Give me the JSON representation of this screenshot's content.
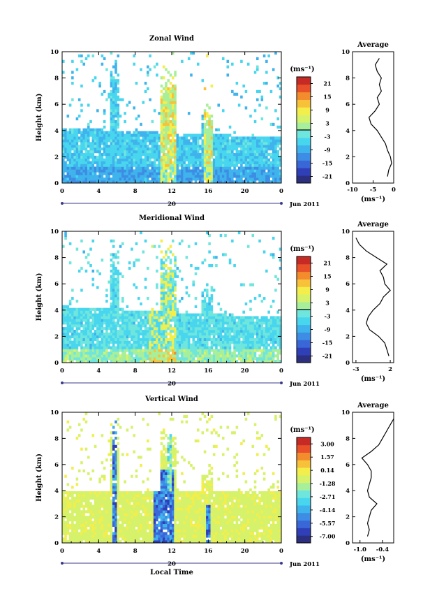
{
  "figure": {
    "xlabel": "Local Time",
    "date_label": "Jun 2011",
    "day_label": "20",
    "unit_label": "(ms⁻¹)"
  },
  "chart_data": [
    {
      "type": "heatmap",
      "title": "Zonal Wind",
      "ylabel": "Height (km)",
      "xlim": [
        0,
        24
      ],
      "ylim": [
        0,
        10
      ],
      "x_ticks": [
        "0",
        "4",
        "8",
        "12",
        "16",
        "20",
        "0"
      ],
      "y_ticks": [
        "0",
        "2",
        "4",
        "6",
        "8",
        "10"
      ],
      "colorbar_unit": "(ms⁻¹)",
      "colorbar_ticks": [
        "21",
        "15",
        "9",
        "3",
        "-3",
        "-9",
        "-15",
        "-21"
      ],
      "colorbar_range": [
        -24,
        24
      ],
      "average_profile": {
        "title": "Average",
        "xlabel": "(ms⁻¹)",
        "x_ticks": [
          "-10",
          "-5",
          "0"
        ],
        "xlim": [
          -10,
          0
        ],
        "heights": [
          0.5,
          1,
          1.5,
          2,
          2.5,
          3,
          3.5,
          4,
          4.5,
          5,
          5.5,
          6,
          6.5,
          7,
          7.5,
          8,
          8.5,
          9,
          9.5
        ],
        "values": [
          -1.5,
          -1.2,
          -0.5,
          -0.8,
          -1.5,
          -2.0,
          -3.0,
          -4.0,
          -5.5,
          -6.0,
          -4.5,
          -3.5,
          -4.0,
          -3.0,
          -3.5,
          -3.0,
          -4.0,
          -4.5,
          -3.5
        ]
      }
    },
    {
      "type": "heatmap",
      "title": "Meridional Wind",
      "ylabel": "Height (km)",
      "xlim": [
        0,
        24
      ],
      "ylim": [
        0,
        10
      ],
      "x_ticks": [
        "0",
        "4",
        "8",
        "12",
        "16",
        "20",
        "0"
      ],
      "y_ticks": [
        "0",
        "2",
        "4",
        "6",
        "8",
        "10"
      ],
      "colorbar_unit": "(ms⁻¹)",
      "colorbar_ticks": [
        "21",
        "15",
        "9",
        "3",
        "-3",
        "-9",
        "-15",
        "-21"
      ],
      "colorbar_range": [
        -24,
        24
      ],
      "average_profile": {
        "title": "Average",
        "xlabel": "(ms⁻¹)",
        "x_ticks": [
          "-3",
          "2"
        ],
        "xlim": [
          -3.5,
          2.5
        ],
        "heights": [
          0.5,
          1,
          1.5,
          2,
          2.5,
          3,
          3.5,
          4,
          4.5,
          5,
          5.5,
          6,
          6.5,
          7,
          7.5,
          8,
          8.5,
          9,
          9.5
        ],
        "values": [
          1.8,
          1.5,
          1.2,
          0.3,
          -1.0,
          -1.5,
          -1.2,
          -0.5,
          0.5,
          1.0,
          2.0,
          1.2,
          1.0,
          0.5,
          1.5,
          0.0,
          -1.5,
          -2.5,
          -3.0
        ]
      }
    },
    {
      "type": "heatmap",
      "title": "Vertical Wind",
      "ylabel": "Height (km)",
      "xlim": [
        0,
        24
      ],
      "ylim": [
        0,
        10
      ],
      "x_ticks": [
        "0",
        "4",
        "8",
        "12",
        "16",
        "20",
        "0"
      ],
      "y_ticks": [
        "0",
        "2",
        "4",
        "6",
        "8",
        "10"
      ],
      "colorbar_unit": "(ms⁻¹)",
      "colorbar_ticks": [
        "3.00",
        "1.57",
        "0.14",
        "-1.28",
        "-2.71",
        "-4.14",
        "-5.57",
        "-7.00"
      ],
      "colorbar_range": [
        -7.7,
        3.7
      ],
      "average_profile": {
        "title": "Average",
        "xlabel": "(ms⁻¹)",
        "x_ticks": [
          "-1.0",
          "-0.4"
        ],
        "xlim": [
          -1.2,
          -0.1
        ],
        "heights": [
          0.5,
          1,
          1.5,
          2,
          2.5,
          3,
          3.5,
          4,
          4.5,
          5,
          5.5,
          6,
          6.5,
          7,
          7.5,
          8,
          8.5,
          9,
          9.5
        ],
        "values": [
          -0.8,
          -0.75,
          -0.8,
          -0.75,
          -0.7,
          -0.55,
          -0.75,
          -0.8,
          -0.75,
          -0.7,
          -0.7,
          -0.8,
          -0.95,
          -0.7,
          -0.5,
          -0.4,
          -0.3,
          -0.2,
          -0.1
        ]
      }
    }
  ]
}
